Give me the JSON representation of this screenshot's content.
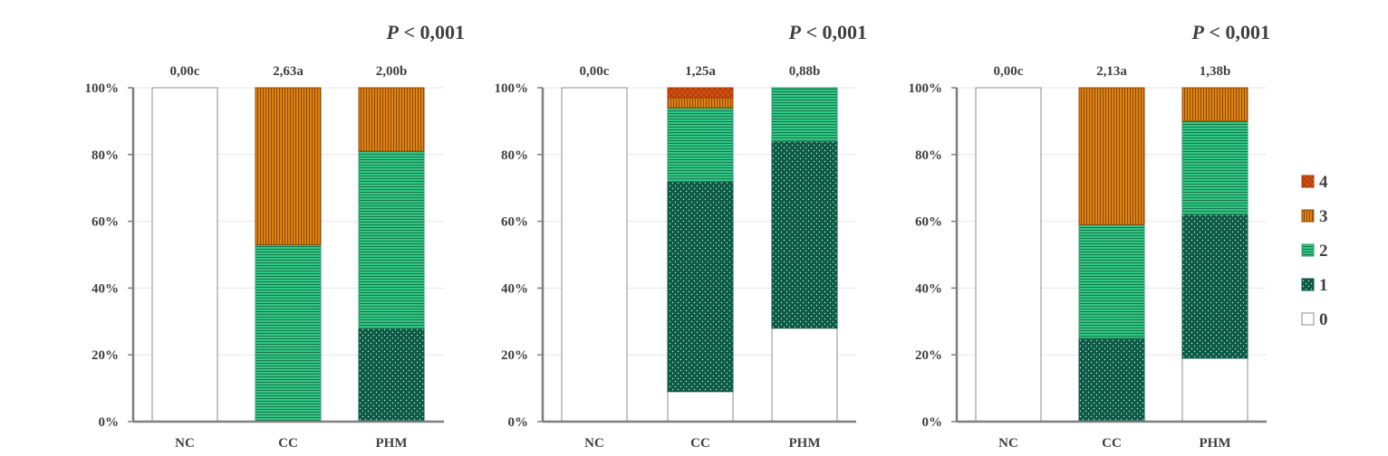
{
  "chart_data": [
    {
      "type": "bar",
      "stacked": true,
      "p_value": {
        "symbol": "P",
        "text": " < 0,001"
      },
      "categories": [
        "NC",
        "CC",
        "PHM"
      ],
      "annotations": [
        "0,00c",
        "2,63a",
        "2,00b"
      ],
      "ylim": [
        0,
        100
      ],
      "yticks": [
        "0%",
        "20%",
        "40%",
        "60%",
        "80%",
        "100%"
      ],
      "series": [
        {
          "name": "0",
          "values": [
            100,
            0,
            0
          ]
        },
        {
          "name": "1",
          "values": [
            0,
            0,
            28
          ]
        },
        {
          "name": "2",
          "values": [
            0,
            53,
            53
          ]
        },
        {
          "name": "3",
          "values": [
            0,
            47,
            19
          ]
        },
        {
          "name": "4",
          "values": [
            0,
            0,
            0
          ]
        }
      ]
    },
    {
      "type": "bar",
      "stacked": true,
      "p_value": {
        "symbol": "P",
        "text": " < 0,001"
      },
      "categories": [
        "NC",
        "CC",
        "PHM"
      ],
      "annotations": [
        "0,00c",
        "1,25a",
        "0,88b"
      ],
      "ylim": [
        0,
        100
      ],
      "yticks": [
        "0%",
        "20%",
        "40%",
        "60%",
        "80%",
        "100%"
      ],
      "series": [
        {
          "name": "0",
          "values": [
            100,
            9,
            28
          ]
        },
        {
          "name": "1",
          "values": [
            0,
            63,
            56
          ]
        },
        {
          "name": "2",
          "values": [
            0,
            22,
            16
          ]
        },
        {
          "name": "3",
          "values": [
            0,
            3,
            0
          ]
        },
        {
          "name": "4",
          "values": [
            0,
            3,
            0
          ]
        }
      ]
    },
    {
      "type": "bar",
      "stacked": true,
      "p_value": {
        "symbol": "P",
        "text": " < 0,001"
      },
      "categories": [
        "NC",
        "CC",
        "PHM"
      ],
      "annotations": [
        "0,00c",
        "2,13a",
        "1,38b"
      ],
      "ylim": [
        0,
        100
      ],
      "yticks": [
        "0%",
        "20%",
        "40%",
        "60%",
        "80%",
        "100%"
      ],
      "series": [
        {
          "name": "0",
          "values": [
            100,
            0,
            19
          ]
        },
        {
          "name": "1",
          "values": [
            0,
            25,
            43
          ]
        },
        {
          "name": "2",
          "values": [
            0,
            34,
            28
          ]
        },
        {
          "name": "3",
          "values": [
            0,
            41,
            10
          ]
        },
        {
          "name": "4",
          "values": [
            0,
            0,
            0
          ]
        }
      ]
    }
  ],
  "legend": {
    "placement": "right",
    "order": [
      "4",
      "3",
      "2",
      "1",
      "0"
    ]
  },
  "colors": {
    "0": "#ffffff",
    "1": "#0b5a45",
    "2": "#2fbf7c",
    "3": "#d77a0f",
    "4": "#d2500f",
    "axis": "#7f7f7f",
    "text": "#404040",
    "grid": "#e6e6e6"
  }
}
